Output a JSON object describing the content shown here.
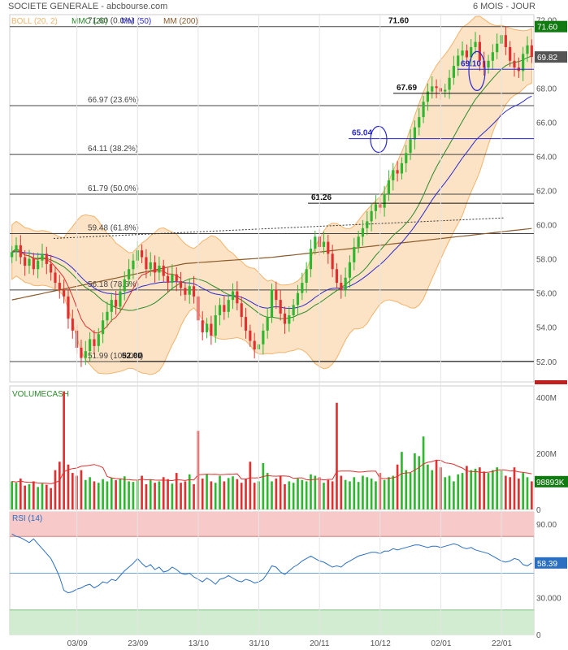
{
  "header": {
    "title": "SOCIETE GENERALE - abcbourse.com",
    "period": "6 MOIS - JOUR"
  },
  "colors": {
    "up": "#2fb82f",
    "down": "#e03030",
    "boll_fill": "#fde3c5",
    "boll_line": "#f3b36b",
    "mmc20": "#2a8a2a",
    "mm50": "#2a2ad0",
    "mm200": "#8b5a2b",
    "fib": "#444444",
    "volume_avg": "#e03030",
    "rsi": "#2a6fc0",
    "rsi_over": "#f7c9c9",
    "rsi_under": "#d2ecd2"
  },
  "chart_data": [
    {
      "type": "candlestick",
      "name": "price",
      "legend": [
        {
          "label": "BOLL (20, 2)",
          "color": "#f3b36b"
        },
        {
          "label": "MMC (20)",
          "color": "#2a8a2a"
        },
        {
          "label": "MM (50)",
          "color": "#2a2ad0"
        },
        {
          "label": "MM (200)",
          "color": "#8b5a2b"
        }
      ],
      "x_ticks": [
        {
          "label": "03/09",
          "i": 15
        },
        {
          "label": "23/09",
          "i": 29
        },
        {
          "label": "13/10",
          "i": 43
        },
        {
          "label": "31/10",
          "i": 57
        },
        {
          "label": "20/11",
          "i": 71
        },
        {
          "label": "10/12",
          "i": 85
        },
        {
          "label": "02/01",
          "i": 99
        },
        {
          "label": "22/01",
          "i": 113
        }
      ],
      "y_ticks": [
        "52.00",
        "54.00",
        "56.00",
        "58.00",
        "60.00",
        "62.00",
        "64.00",
        "66.00",
        "68.00",
        "70.00",
        "72.00"
      ],
      "ylim": [
        50.8,
        72.3
      ],
      "last_price_label": "69.82",
      "fibonacci": [
        {
          "label": "71.60  (0.0%)",
          "value": 71.6
        },
        {
          "label": "66.97  (23.6%)",
          "value": 66.97
        },
        {
          "label": "64.11  (38.2%)",
          "value": 64.11
        },
        {
          "label": "61.79  (50.0%)",
          "value": 61.79
        },
        {
          "label": "59.48  (61.8%)",
          "value": 59.48
        },
        {
          "label": "56.18  (78.6%)",
          "value": 56.18
        },
        {
          "label": "51.99  (100.0%)",
          "value": 51.99
        }
      ],
      "annotations": [
        {
          "text": "71.60",
          "value": 71.6,
          "badge": "71.60"
        },
        {
          "text": "69.10",
          "value": 69.1
        },
        {
          "text": "67.69",
          "value": 67.69
        },
        {
          "text": "65.04",
          "value": 65.04
        },
        {
          "text": "61.26",
          "value": 61.26
        },
        {
          "text": "52.00",
          "value": 52.0
        }
      ],
      "close": [
        58.4,
        58.8,
        58.1,
        57.6,
        58.0,
        57.4,
        57.9,
        58.3,
        57.7,
        57.2,
        56.6,
        56.2,
        55.8,
        54.5,
        53.8,
        52.8,
        52.2,
        52.6,
        53.3,
        52.9,
        53.6,
        54.4,
        54.9,
        55.6,
        55.2,
        56.1,
        56.8,
        57.4,
        57.9,
        58.5,
        58.1,
        57.4,
        57.8,
        57.2,
        57.6,
        57.0,
        56.6,
        57.1,
        56.7,
        56.3,
        55.9,
        56.4,
        55.8,
        54.4,
        53.7,
        54.2,
        53.5,
        54.7,
        55.3,
        54.9,
        55.6,
        56.1,
        55.4,
        54.6,
        53.8,
        53.2,
        52.7,
        53.0,
        53.8,
        54.6,
        56.2,
        55.6,
        54.8,
        54.2,
        54.7,
        55.3,
        56.0,
        56.6,
        57.4,
        58.6,
        59.3,
        58.7,
        59.0,
        58.3,
        57.4,
        56.6,
        56.2,
        56.9,
        57.8,
        58.7,
        59.3,
        59.8,
        60.2,
        60.8,
        61.2,
        61.0,
        61.8,
        62.6,
        63.2,
        63.0,
        63.6,
        64.2,
        65.0,
        65.7,
        66.3,
        67.2,
        67.8,
        68.1,
        68.0,
        67.8,
        67.9,
        68.6,
        69.3,
        69.9,
        70.2,
        69.8,
        70.4,
        70.7,
        69.6,
        69.2,
        69.6,
        70.1,
        70.6,
        71.1,
        70.4,
        69.6,
        69.2,
        69.0,
        70.0,
        70.5,
        69.82
      ],
      "volume_ylim": [
        0,
        440
      ],
      "volume_ticks": [
        "0",
        "200M",
        "400M"
      ],
      "volume_last_label": "98893K",
      "volume": [
        100,
        95,
        110,
        85,
        90,
        100,
        80,
        92,
        88,
        76,
        140,
        170,
        420,
        160,
        130,
        120,
        140,
        105,
        115,
        100,
        95,
        108,
        100,
        112,
        104,
        110,
        118,
        100,
        98,
        105,
        120,
        90,
        105,
        95,
        100,
        115,
        108,
        92,
        130,
        95,
        100,
        125,
        90,
        280,
        110,
        125,
        100,
        95,
        120,
        100,
        112,
        118,
        108,
        95,
        110,
        170,
        95,
        100,
        165,
        130,
        100,
        110,
        120,
        90,
        100,
        95,
        110,
        105,
        100,
        125,
        120,
        115,
        95,
        105,
        100,
        380,
        120,
        105,
        100,
        115,
        98,
        120,
        115,
        110,
        100,
        130,
        105,
        115,
        120,
        160,
        205,
        140,
        130,
        200,
        190,
        260,
        160,
        140,
        175,
        150,
        115,
        120,
        100,
        125,
        130,
        155,
        140,
        145,
        150,
        135,
        130,
        140,
        150,
        140,
        120,
        115,
        150,
        110,
        130,
        115,
        100
      ]
    },
    {
      "type": "line",
      "name": "RSI (14)",
      "ylim": [
        0,
        100
      ],
      "y_ticks": [
        "0",
        "30.000",
        "90.00"
      ],
      "overbought": 80,
      "oversold": 20,
      "reference": 50,
      "last_label": "58.39",
      "values": [
        82,
        80,
        79,
        77,
        75,
        78,
        74,
        70,
        66,
        62,
        55,
        47,
        36,
        34,
        35,
        37,
        38,
        40,
        41,
        38,
        40,
        43,
        42,
        45,
        44,
        48,
        52,
        55,
        58,
        62,
        58,
        55,
        57,
        53,
        55,
        51,
        52,
        55,
        53,
        50,
        49,
        50,
        47,
        45,
        43,
        46,
        44,
        41,
        45,
        46,
        48,
        46,
        44,
        43,
        45,
        44,
        42,
        43,
        45,
        50,
        56,
        55,
        51,
        49,
        52,
        55,
        57,
        60,
        62,
        64,
        62,
        60,
        59,
        57,
        55,
        56,
        55,
        58,
        60,
        62,
        64,
        65,
        66,
        67,
        67,
        66,
        68,
        68,
        70,
        69,
        70,
        71,
        72,
        73,
        73,
        72,
        71,
        72,
        72,
        71,
        72,
        73,
        74,
        73,
        71,
        70,
        71,
        69,
        68,
        67,
        66,
        64,
        62,
        60,
        59,
        60,
        62,
        61,
        57,
        56,
        58.39
      ]
    }
  ]
}
